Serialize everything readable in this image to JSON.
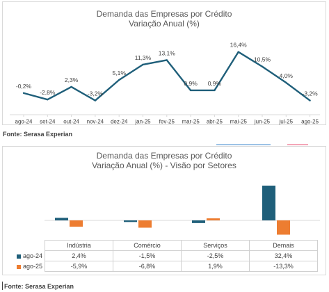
{
  "chart1": {
    "title": "Demanda das Empresas por Crédito",
    "subtitle": "Variação Anual (%)",
    "source": "Fonte: Serasa Experian",
    "color": "#1f5f7a"
  },
  "chart2": {
    "title": "Demanda das Empresas por Crédito",
    "subtitle": "Variação Anual (%) - Visão por Setores",
    "source": "Fonte: Serasa Experian"
  },
  "chart_data": [
    {
      "type": "line",
      "title": "Demanda das Empresas por Crédito",
      "subtitle": "Variação Anual (%)",
      "categories": [
        "ago-24",
        "set-24",
        "out-24",
        "nov-24",
        "dez-24",
        "jan-25",
        "fev-25",
        "mar-25",
        "abr-25",
        "mai-25",
        "jun-25",
        "jul-25",
        "ago-25"
      ],
      "values": [
        -0.2,
        -2.8,
        2.3,
        -3.2,
        5.1,
        11.3,
        13.1,
        0.9,
        0.9,
        16.4,
        10.5,
        4.0,
        -3.2
      ],
      "labels": [
        "-0,2%",
        "-2,8%",
        "2,3%",
        "-3,2%",
        "5,1%",
        "11,3%",
        "13,1%",
        "0,9%",
        "0,9%",
        "16,4%",
        "10,5%",
        "4,0%",
        "-3,2%"
      ],
      "ylim": [
        -5,
        18
      ],
      "grid": false,
      "color": "#1f5f7a"
    },
    {
      "type": "bar",
      "title": "Demanda das Empresas por Crédito",
      "subtitle": "Variação Anual (%) - Visão por Setores",
      "categories": [
        "Indústria",
        "Comércio",
        "Serviços",
        "Demais"
      ],
      "series": [
        {
          "name": "ago-24",
          "values": [
            2.4,
            -1.5,
            -2.5,
            32.4
          ],
          "labels": [
            "2,4%",
            "-1,5%",
            "-2,5%",
            "32,4%"
          ],
          "color": "#1f5f7a"
        },
        {
          "name": "ago-25",
          "values": [
            -5.9,
            -6.8,
            1.9,
            -13.3
          ],
          "labels": [
            "-5,9%",
            "-6,8%",
            "1,9%",
            "-13,3%"
          ],
          "color": "#ed7d31"
        }
      ],
      "ylim": [
        -15,
        35
      ],
      "grid": false,
      "legend": "data-table"
    }
  ]
}
